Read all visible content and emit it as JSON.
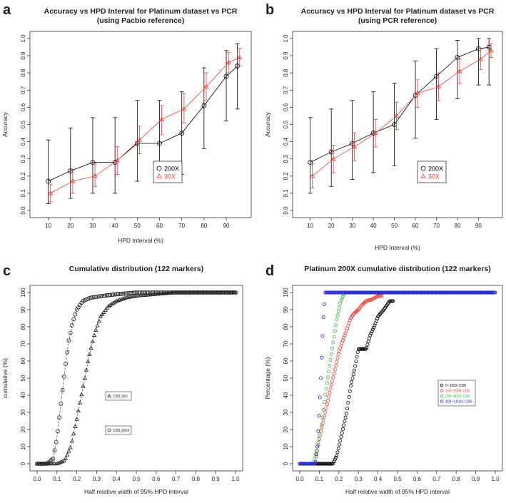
{
  "chart_data": [
    {
      "panel": "a",
      "type": "line",
      "title": "Accuracy vs HPD Interval for Platinum dataset vs PCR",
      "subtitle": "(using Pacbio reference)",
      "xlabel": "HPD Interval (%)",
      "ylabel": "Accuracy",
      "xlim": [
        5,
        98
      ],
      "ylim": [
        0,
        1
      ],
      "xticks": [
        10,
        20,
        30,
        40,
        50,
        60,
        70,
        80,
        90
      ],
      "yticks": [
        0.0,
        0.1,
        0.2,
        0.3,
        0.4,
        0.5,
        0.6,
        0.7,
        0.8,
        0.9,
        1.0
      ],
      "legend": "center-right",
      "series": [
        {
          "name": "200X",
          "color": "#000000",
          "marker": "circle",
          "x": [
            10,
            20,
            30,
            40,
            50,
            60,
            70,
            80,
            90,
            95
          ],
          "y": [
            0.17,
            0.23,
            0.28,
            0.28,
            0.39,
            0.39,
            0.45,
            0.61,
            0.78,
            0.84
          ],
          "lower": [
            0.04,
            0.07,
            0.1,
            0.1,
            0.17,
            0.17,
            0.21,
            0.36,
            0.52,
            0.59
          ],
          "upper": [
            0.41,
            0.48,
            0.54,
            0.54,
            0.64,
            0.64,
            0.69,
            0.83,
            0.93,
            0.97
          ]
        },
        {
          "name": "30X",
          "color": "#e8413a",
          "marker": "triangle",
          "x": [
            11,
            21,
            31,
            41,
            51,
            61,
            71,
            81,
            91,
            96
          ],
          "y": [
            0.1,
            0.17,
            0.2,
            0.29,
            0.41,
            0.53,
            0.59,
            0.72,
            0.86,
            0.89
          ],
          "lower": [
            0.05,
            0.1,
            0.14,
            0.21,
            0.33,
            0.44,
            0.51,
            0.64,
            0.8,
            0.84
          ],
          "upper": [
            0.15,
            0.24,
            0.27,
            0.37,
            0.49,
            0.61,
            0.68,
            0.8,
            0.92,
            0.94
          ]
        }
      ]
    },
    {
      "panel": "b",
      "type": "line",
      "title": "Accuracy vs HPD Interval for Platinum dataset vs PCR",
      "subtitle": "(using PCR reference)",
      "xlabel": "HPD Interval (%)",
      "ylabel": "Accuracy",
      "xlim": [
        5,
        98
      ],
      "ylim": [
        0,
        1
      ],
      "xticks": [
        10,
        20,
        30,
        40,
        50,
        60,
        70,
        80,
        90
      ],
      "yticks": [
        0.0,
        0.1,
        0.2,
        0.3,
        0.4,
        0.5,
        0.6,
        0.7,
        0.8,
        0.9,
        1.0
      ],
      "legend": "center-right",
      "series": [
        {
          "name": "200X",
          "color": "#000000",
          "marker": "circle",
          "x": [
            10,
            20,
            30,
            40,
            50,
            60,
            70,
            80,
            90,
            95
          ],
          "y": [
            0.28,
            0.34,
            0.39,
            0.45,
            0.5,
            0.67,
            0.78,
            0.89,
            0.94,
            0.95
          ],
          "lower": [
            0.1,
            0.14,
            0.18,
            0.22,
            0.26,
            0.42,
            0.53,
            0.65,
            0.73,
            0.73
          ],
          "upper": [
            0.54,
            0.59,
            0.64,
            0.69,
            0.74,
            0.87,
            0.94,
            0.99,
            1.0,
            1.0
          ]
        },
        {
          "name": "30X",
          "color": "#e8413a",
          "marker": "triangle",
          "x": [
            11,
            21,
            31,
            41,
            51,
            61,
            71,
            81,
            91,
            96
          ],
          "y": [
            0.2,
            0.3,
            0.37,
            0.45,
            0.55,
            0.68,
            0.72,
            0.81,
            0.88,
            0.93
          ],
          "lower": [
            0.13,
            0.22,
            0.29,
            0.37,
            0.47,
            0.6,
            0.64,
            0.74,
            0.82,
            0.89
          ],
          "upper": [
            0.27,
            0.38,
            0.45,
            0.53,
            0.63,
            0.76,
            0.8,
            0.88,
            0.94,
            0.97
          ]
        }
      ]
    },
    {
      "panel": "c",
      "type": "scatter",
      "title": "Cumulative distribution (122 markers)",
      "xlabel": "Half relative width of 95% HPD interval",
      "ylabel": "cumulative (%)",
      "xlim": [
        0,
        1
      ],
      "ylim": [
        0,
        100
      ],
      "xticks": [
        0.0,
        0.1,
        0.2,
        0.3,
        0.4,
        0.5,
        0.6,
        0.7,
        0.8,
        0.9,
        1.0
      ],
      "yticks": [
        0,
        10,
        20,
        30,
        40,
        50,
        60,
        70,
        80,
        90,
        100
      ],
      "legend": "center-right",
      "series": [
        {
          "name": "CI95 30X",
          "color": "#222222",
          "marker": "triangle",
          "curve": [
            [
              0.0,
              0
            ],
            [
              0.1,
              0
            ],
            [
              0.14,
              2
            ],
            [
              0.17,
              10
            ],
            [
              0.2,
              26
            ],
            [
              0.23,
              44
            ],
            [
              0.26,
              62
            ],
            [
              0.29,
              76
            ],
            [
              0.32,
              86
            ],
            [
              0.36,
              92
            ],
            [
              0.4,
              95
            ],
            [
              0.45,
              97
            ],
            [
              0.5,
              98
            ],
            [
              0.6,
              99
            ],
            [
              0.7,
              100
            ],
            [
              1.0,
              100
            ]
          ]
        },
        {
          "name": "CI95 200X",
          "color": "#222222",
          "marker": "circle",
          "curve": [
            [
              0.0,
              0
            ],
            [
              0.05,
              0
            ],
            [
              0.08,
              3
            ],
            [
              0.1,
              15
            ],
            [
              0.12,
              35
            ],
            [
              0.14,
              55
            ],
            [
              0.16,
              72
            ],
            [
              0.18,
              83
            ],
            [
              0.2,
              90
            ],
            [
              0.23,
              95
            ],
            [
              0.27,
              97
            ],
            [
              0.33,
              98
            ],
            [
              0.4,
              99
            ],
            [
              0.5,
              100
            ],
            [
              1.0,
              100
            ]
          ]
        }
      ]
    },
    {
      "panel": "d",
      "type": "scatter",
      "title": "Platinum 200X cumulative distribution (122 markers)",
      "xlabel": "Half relative width of 95% HPD interval",
      "ylabel": "Percentage (%)",
      "xlim": [
        0,
        1
      ],
      "ylim": [
        0,
        100
      ],
      "xticks": [
        0.0,
        0.1,
        0.2,
        0.3,
        0.4,
        0.5,
        0.6,
        0.7,
        0.8,
        0.9,
        1.0
      ],
      "yticks": [
        0,
        10,
        20,
        30,
        40,
        50,
        60,
        70,
        80,
        90,
        100
      ],
      "legend": "center-right",
      "series": [
        {
          "name": "0~100X CI95",
          "color": "#000000",
          "marker": "circle",
          "curve": [
            [
              0.0,
              0
            ],
            [
              0.17,
              0
            ],
            [
              0.19,
              5
            ],
            [
              0.2,
              10
            ],
            [
              0.22,
              20
            ],
            [
              0.24,
              30
            ],
            [
              0.26,
              45
            ],
            [
              0.28,
              55
            ],
            [
              0.3,
              67
            ],
            [
              0.34,
              67
            ],
            [
              0.36,
              75
            ],
            [
              0.38,
              80
            ],
            [
              0.4,
              86
            ],
            [
              0.43,
              90
            ],
            [
              0.46,
              95
            ],
            [
              0.48,
              95
            ]
          ]
        },
        {
          "name": "100~200X CI95",
          "color": "#e8413a",
          "marker": "circle",
          "curve": [
            [
              0.0,
              0
            ],
            [
              0.08,
              0
            ],
            [
              0.1,
              15
            ],
            [
              0.12,
              25
            ],
            [
              0.14,
              35
            ],
            [
              0.16,
              45
            ],
            [
              0.18,
              55
            ],
            [
              0.2,
              65
            ],
            [
              0.22,
              72
            ],
            [
              0.24,
              78
            ],
            [
              0.26,
              85
            ],
            [
              0.28,
              88
            ],
            [
              0.3,
              90
            ],
            [
              0.32,
              93
            ],
            [
              0.34,
              95
            ],
            [
              0.37,
              96
            ],
            [
              0.4,
              98
            ],
            [
              0.42,
              98
            ]
          ]
        },
        {
          "name": "200~400X CI95",
          "color": "#3cb44b",
          "marker": "circle",
          "curve": [
            [
              0.0,
              0
            ],
            [
              0.07,
              0
            ],
            [
              0.09,
              10
            ],
            [
              0.11,
              20
            ],
            [
              0.13,
              40
            ],
            [
              0.15,
              55
            ],
            [
              0.17,
              70
            ],
            [
              0.19,
              85
            ],
            [
              0.21,
              95
            ],
            [
              0.23,
              100
            ],
            [
              1.0,
              100
            ]
          ]
        },
        {
          "name": "400~1400X CI95",
          "color": "#2222dd",
          "marker": "circle",
          "curve": [
            [
              0.0,
              0
            ],
            [
              0.08,
              0
            ],
            [
              0.09,
              10
            ],
            [
              0.1,
              30
            ],
            [
              0.11,
              55
            ],
            [
              0.12,
              83
            ],
            [
              0.13,
              100
            ],
            [
              1.0,
              100
            ]
          ]
        }
      ]
    }
  ]
}
